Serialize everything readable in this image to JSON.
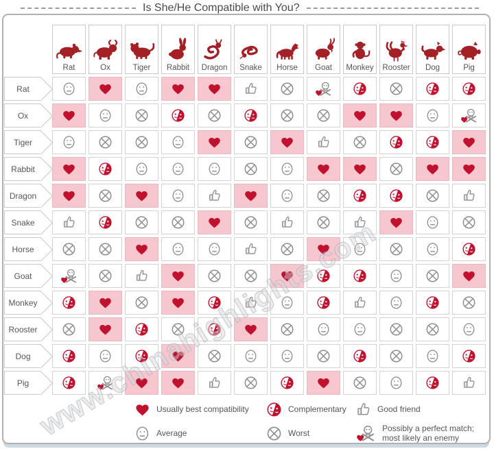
{
  "title": "Is She/He Compatible with You?",
  "watermark": "www.chinahighlights.com",
  "colors": {
    "heart_red": "#c0122f",
    "animal_red": "#a32026",
    "pink_bg": "#f7c7d0",
    "icon_gray": "#8d8d8d",
    "text_gray": "#555555",
    "cell_border": "#d2d2d2",
    "box_border": "#b0b0b0",
    "bottom_shadow": "#ccd9e0"
  },
  "legend": [
    {
      "icon": "heart",
      "label": "Usually best compatibility"
    },
    {
      "icon": "complementary",
      "label": "Complementary"
    },
    {
      "icon": "good",
      "label": "Good friend"
    },
    {
      "icon": "average",
      "label": "Average"
    },
    {
      "icon": "worst",
      "label": "Worst"
    },
    {
      "icon": "enemy",
      "label": "Possibly a perfect match; most likely an enemy"
    }
  ],
  "chart_data": {
    "type": "heatmap",
    "title": "Is She/He Compatible with You?",
    "x_categories": [
      "Rat",
      "Ox",
      "Tiger",
      "Rabbit",
      "Dragon",
      "Snake",
      "Horse",
      "Goat",
      "Monkey",
      "Rooster",
      "Dog",
      "Pig"
    ],
    "y_categories": [
      "Rat",
      "Ox",
      "Tiger",
      "Rabbit",
      "Dragon",
      "Snake",
      "Horse",
      "Goat",
      "Monkey",
      "Rooster",
      "Dog",
      "Pig"
    ],
    "value_legend": {
      "heart": "Usually best compatibility",
      "complementary": "Complementary",
      "good": "Good friend",
      "average": "Average",
      "worst": "Worst",
      "enemy": "Possibly a perfect match; most likely an enemy"
    },
    "highlight_rule": "heart cells have pink background",
    "matrix": [
      [
        "average",
        "heart",
        "average",
        "heart",
        "heart",
        "good",
        "worst",
        "enemy",
        "complementary",
        "worst",
        "complementary",
        "complementary"
      ],
      [
        "heart",
        "average",
        "worst",
        "complementary",
        "worst",
        "complementary",
        "worst",
        "worst",
        "heart",
        "heart",
        "average",
        "enemy"
      ],
      [
        "average",
        "worst",
        "worst",
        "average",
        "heart",
        "worst",
        "heart",
        "good",
        "worst",
        "complementary",
        "complementary",
        "heart"
      ],
      [
        "heart",
        "complementary",
        "average",
        "average",
        "average",
        "worst",
        "average",
        "heart",
        "heart",
        "worst",
        "heart",
        "heart"
      ],
      [
        "heart",
        "worst",
        "heart",
        "average",
        "good",
        "heart",
        "average",
        "worst",
        "complementary",
        "complementary",
        "worst",
        "good"
      ],
      [
        "good",
        "complementary",
        "worst",
        "worst",
        "heart",
        "worst",
        "good",
        "worst",
        "good",
        "heart",
        "average",
        "worst"
      ],
      [
        "worst",
        "worst",
        "heart",
        "average",
        "average",
        "good",
        "worst",
        "heart",
        "average",
        "worst",
        "average",
        "complementary"
      ],
      [
        "enemy",
        "worst",
        "good",
        "heart",
        "worst",
        "worst",
        "heart",
        "complementary",
        "complementary",
        "average",
        "worst",
        "heart"
      ],
      [
        "complementary",
        "heart",
        "worst",
        "heart",
        "complementary",
        "good",
        "average",
        "complementary",
        "good",
        "average",
        "complementary",
        "worst"
      ],
      [
        "worst",
        "heart",
        "complementary",
        "worst",
        "complementary",
        "heart",
        "worst",
        "average",
        "average",
        "worst",
        "worst",
        "average"
      ],
      [
        "complementary",
        "average",
        "complementary",
        "heart",
        "worst",
        "average",
        "average",
        "worst",
        "complementary",
        "worst",
        "average",
        "complementary"
      ],
      [
        "complementary",
        "enemy",
        "heart",
        "heart",
        "good",
        "worst",
        "complementary",
        "heart",
        "worst",
        "average",
        "complementary",
        "good"
      ]
    ]
  }
}
